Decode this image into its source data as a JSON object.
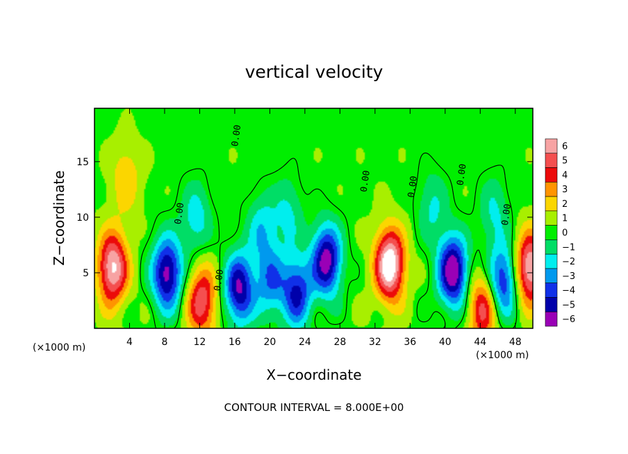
{
  "chart_data": {
    "type": "heatmap",
    "title": "vertical velocity",
    "xlabel": "X−coordinate",
    "ylabel": "Z−coordinate",
    "x_unit": "(×1000 m)",
    "y_unit": "(×1000 m)",
    "xlim": [
      0,
      50
    ],
    "ylim": [
      0,
      19.8
    ],
    "x_ticks": [
      4,
      8,
      12,
      16,
      20,
      24,
      28,
      32,
      36,
      40,
      44,
      48
    ],
    "y_ticks": [
      5,
      10,
      15
    ],
    "colorbar": {
      "ticks": [
        6,
        5,
        4,
        3,
        2,
        1,
        0,
        -1,
        -2,
        -3,
        -4,
        -5,
        -6
      ],
      "tick_labels": [
        "6",
        "5",
        "4",
        "3",
        "2",
        "1",
        "0",
        "−1",
        "−2",
        "−3",
        "−4",
        "−5",
        "−6"
      ],
      "colors": [
        "#f7a3a3",
        "#f44f4f",
        "#ec0a0a",
        "#ff9400",
        "#fbd600",
        "#a8ef00",
        "#00ee00",
        "#00dd66",
        "#00eeee",
        "#0099ee",
        "#1030e8",
        "#0000aa",
        "#9a00b6"
      ]
    },
    "contour_interval": "CONTOUR INTERVAL = 8.000E+00",
    "contour_label": "0.00",
    "features": [
      {
        "x": 2.0,
        "z": 5.5,
        "w": 6.5
      },
      {
        "x": 8.2,
        "z": 5.0,
        "w": -6.5
      },
      {
        "x": 12.2,
        "z": 2.5,
        "w": 5.0
      },
      {
        "x": 16.4,
        "z": 3.6,
        "w": -6.0
      },
      {
        "x": 20.0,
        "z": 4.2,
        "w": -3.5
      },
      {
        "x": 23.0,
        "z": 3.3,
        "w": -5.0
      },
      {
        "x": 26.4,
        "z": 6.2,
        "w": -6.5
      },
      {
        "x": 33.6,
        "z": 5.8,
        "w": 7.5
      },
      {
        "x": 40.8,
        "z": 5.2,
        "w": -7.0
      },
      {
        "x": 44.2,
        "z": 1.8,
        "w": 4.5
      },
      {
        "x": 46.5,
        "z": 4.3,
        "w": -5.0
      },
      {
        "x": 49.6,
        "z": 5.5,
        "w": 6.5
      },
      {
        "x": 11.5,
        "z": 10.0,
        "w": -2.5
      },
      {
        "x": 19.0,
        "z": 9.0,
        "w": -2.5
      },
      {
        "x": 22.0,
        "z": 10.5,
        "w": -2.0
      },
      {
        "x": 3.5,
        "z": 13.5,
        "w": 2.0
      },
      {
        "x": 38.5,
        "z": 11.0,
        "w": -2.0
      },
      {
        "x": 45.5,
        "z": 10.5,
        "w": -2.0
      }
    ]
  }
}
